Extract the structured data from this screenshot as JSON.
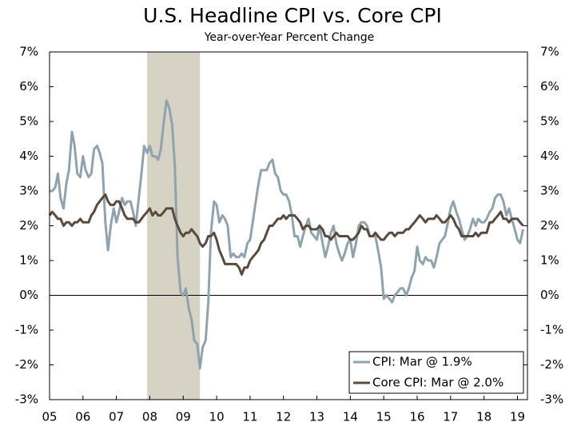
{
  "chart_data": {
    "type": "line",
    "title": "U.S. Headline CPI vs. Core CPI",
    "subtitle": "Year-over-Year Percent Change",
    "x": [
      2005,
      2005.08,
      2005.17,
      2005.25,
      2005.33,
      2005.42,
      2005.5,
      2005.58,
      2005.67,
      2005.75,
      2005.83,
      2005.92,
      2006,
      2006.08,
      2006.17,
      2006.25,
      2006.33,
      2006.42,
      2006.5,
      2006.58,
      2006.67,
      2006.75,
      2006.83,
      2006.92,
      2007,
      2007.08,
      2007.17,
      2007.25,
      2007.33,
      2007.42,
      2007.5,
      2007.58,
      2007.67,
      2007.75,
      2007.83,
      2007.92,
      2008,
      2008.08,
      2008.17,
      2008.25,
      2008.33,
      2008.42,
      2008.5,
      2008.58,
      2008.67,
      2008.75,
      2008.83,
      2008.92,
      2009,
      2009.08,
      2009.17,
      2009.25,
      2009.33,
      2009.42,
      2009.5,
      2009.58,
      2009.67,
      2009.75,
      2009.83,
      2009.92,
      2010,
      2010.08,
      2010.17,
      2010.25,
      2010.33,
      2010.42,
      2010.5,
      2010.58,
      2010.67,
      2010.75,
      2010.83,
      2010.92,
      2011,
      2011.08,
      2011.17,
      2011.25,
      2011.33,
      2011.42,
      2011.5,
      2011.58,
      2011.67,
      2011.75,
      2011.83,
      2011.92,
      2012,
      2012.08,
      2012.17,
      2012.25,
      2012.33,
      2012.42,
      2012.5,
      2012.58,
      2012.67,
      2012.75,
      2012.83,
      2012.92,
      2013,
      2013.08,
      2013.17,
      2013.25,
      2013.33,
      2013.42,
      2013.5,
      2013.58,
      2013.67,
      2013.75,
      2013.83,
      2013.92,
      2014,
      2014.08,
      2014.17,
      2014.25,
      2014.33,
      2014.42,
      2014.5,
      2014.58,
      2014.67,
      2014.75,
      2014.83,
      2014.92,
      2015,
      2015.08,
      2015.17,
      2015.25,
      2015.33,
      2015.42,
      2015.5,
      2015.58,
      2015.67,
      2015.75,
      2015.83,
      2015.92,
      2016,
      2016.08,
      2016.17,
      2016.25,
      2016.33,
      2016.42,
      2016.5,
      2016.58,
      2016.67,
      2016.75,
      2016.83,
      2016.92,
      2017,
      2017.08,
      2017.17,
      2017.25,
      2017.33,
      2017.42,
      2017.5,
      2017.58,
      2017.67,
      2017.75,
      2017.83,
      2017.92,
      2018,
      2018.08,
      2018.17,
      2018.25,
      2018.33,
      2018.42,
      2018.5,
      2018.58,
      2018.67,
      2018.75,
      2018.83,
      2018.92,
      2019,
      2019.08,
      2019.17
    ],
    "series": [
      {
        "name": "CPI: Mar @ 1.9%",
        "color": "#8fa3ae",
        "values": [
          3.0,
          3.0,
          3.1,
          3.5,
          2.8,
          2.5,
          3.2,
          3.6,
          4.7,
          4.3,
          3.5,
          3.4,
          4.0,
          3.6,
          3.4,
          3.5,
          4.2,
          4.3,
          4.1,
          3.8,
          2.1,
          1.3,
          2.0,
          2.5,
          2.1,
          2.4,
          2.8,
          2.6,
          2.7,
          2.7,
          2.4,
          2.0,
          2.8,
          3.5,
          4.3,
          4.1,
          4.3,
          4.0,
          4.0,
          3.9,
          4.2,
          5.0,
          5.6,
          5.4,
          4.9,
          3.7,
          1.1,
          0.1,
          0.0,
          0.2,
          -0.4,
          -0.7,
          -1.3,
          -1.4,
          -2.1,
          -1.5,
          -1.3,
          -0.2,
          1.8,
          2.7,
          2.6,
          2.1,
          2.3,
          2.2,
          2.0,
          1.1,
          1.2,
          1.1,
          1.1,
          1.2,
          1.1,
          1.5,
          1.6,
          2.1,
          2.7,
          3.2,
          3.6,
          3.6,
          3.6,
          3.8,
          3.9,
          3.5,
          3.4,
          3.0,
          2.9,
          2.9,
          2.7,
          2.3,
          1.7,
          1.7,
          1.4,
          1.7,
          2.0,
          2.2,
          1.8,
          1.7,
          1.6,
          2.0,
          1.5,
          1.1,
          1.4,
          1.8,
          2.0,
          1.5,
          1.2,
          1.0,
          1.2,
          1.5,
          1.6,
          1.1,
          1.5,
          2.0,
          2.1,
          2.1,
          2.0,
          1.7,
          1.7,
          1.7,
          1.3,
          0.8,
          -0.1,
          0.0,
          -0.1,
          -0.2,
          0.0,
          0.1,
          0.2,
          0.2,
          0.0,
          0.2,
          0.5,
          0.7,
          1.4,
          1.0,
          0.9,
          1.1,
          1.0,
          1.0,
          0.8,
          1.1,
          1.5,
          1.6,
          1.7,
          2.1,
          2.5,
          2.7,
          2.4,
          2.2,
          1.9,
          1.6,
          1.7,
          1.9,
          2.2,
          2.0,
          2.2,
          2.1,
          2.1,
          2.2,
          2.4,
          2.5,
          2.8,
          2.9,
          2.9,
          2.7,
          2.3,
          2.5,
          2.2,
          1.9,
          1.6,
          1.5,
          1.9
        ]
      },
      {
        "name": "Core CPI: Mar @ 2.0%",
        "color": "#594a3c",
        "values": [
          2.3,
          2.4,
          2.3,
          2.2,
          2.2,
          2.0,
          2.1,
          2.1,
          2.0,
          2.1,
          2.1,
          2.2,
          2.1,
          2.1,
          2.1,
          2.3,
          2.4,
          2.6,
          2.7,
          2.8,
          2.9,
          2.7,
          2.6,
          2.6,
          2.7,
          2.7,
          2.5,
          2.3,
          2.2,
          2.2,
          2.2,
          2.1,
          2.1,
          2.2,
          2.3,
          2.4,
          2.5,
          2.3,
          2.4,
          2.3,
          2.3,
          2.4,
          2.5,
          2.5,
          2.5,
          2.2,
          2.0,
          1.8,
          1.7,
          1.8,
          1.8,
          1.9,
          1.8,
          1.7,
          1.5,
          1.4,
          1.5,
          1.7,
          1.7,
          1.8,
          1.6,
          1.3,
          1.1,
          0.9,
          0.9,
          0.9,
          0.9,
          0.9,
          0.8,
          0.6,
          0.8,
          0.8,
          1.0,
          1.1,
          1.2,
          1.3,
          1.5,
          1.6,
          1.8,
          2.0,
          2.0,
          2.1,
          2.2,
          2.2,
          2.3,
          2.2,
          2.3,
          2.3,
          2.3,
          2.2,
          2.1,
          1.9,
          2.0,
          2.0,
          1.9,
          1.9,
          1.9,
          2.0,
          1.9,
          1.7,
          1.7,
          1.6,
          1.7,
          1.8,
          1.7,
          1.7,
          1.7,
          1.7,
          1.6,
          1.6,
          1.7,
          1.8,
          2.0,
          1.9,
          1.9,
          1.7,
          1.7,
          1.8,
          1.7,
          1.6,
          1.6,
          1.7,
          1.8,
          1.8,
          1.7,
          1.8,
          1.8,
          1.8,
          1.9,
          1.9,
          2.0,
          2.1,
          2.2,
          2.3,
          2.2,
          2.1,
          2.2,
          2.2,
          2.2,
          2.3,
          2.2,
          2.1,
          2.1,
          2.2,
          2.3,
          2.2,
          2.0,
          1.9,
          1.7,
          1.7,
          1.7,
          1.7,
          1.7,
          1.8,
          1.7,
          1.8,
          1.8,
          1.8,
          2.1,
          2.1,
          2.2,
          2.3,
          2.4,
          2.2,
          2.2,
          2.1,
          2.2,
          2.2,
          2.2,
          2.1,
          2.0
        ]
      }
    ],
    "xlim": [
      2005,
      2019.3
    ],
    "xticks": [
      {
        "value": 2005,
        "label": "05"
      },
      {
        "value": 2006,
        "label": "06"
      },
      {
        "value": 2007,
        "label": "07"
      },
      {
        "value": 2008,
        "label": "08"
      },
      {
        "value": 2009,
        "label": "09"
      },
      {
        "value": 2010,
        "label": "10"
      },
      {
        "value": 2011,
        "label": "11"
      },
      {
        "value": 2012,
        "label": "12"
      },
      {
        "value": 2013,
        "label": "13"
      },
      {
        "value": 2014,
        "label": "14"
      },
      {
        "value": 2015,
        "label": "15"
      },
      {
        "value": 2016,
        "label": "16"
      },
      {
        "value": 2017,
        "label": "17"
      },
      {
        "value": 2018,
        "label": "18"
      },
      {
        "value": 2019,
        "label": "19"
      }
    ],
    "ylim": [
      -3,
      7
    ],
    "yticks": [
      {
        "value": -3,
        "label": "-3%"
      },
      {
        "value": -2,
        "label": "-2%"
      },
      {
        "value": -1,
        "label": "-1%"
      },
      {
        "value": 0,
        "label": "0%"
      },
      {
        "value": 1,
        "label": "1%"
      },
      {
        "value": 2,
        "label": "2%"
      },
      {
        "value": 3,
        "label": "3%"
      },
      {
        "value": 4,
        "label": "4%"
      },
      {
        "value": 5,
        "label": "5%"
      },
      {
        "value": 6,
        "label": "6%"
      },
      {
        "value": 7,
        "label": "7%"
      }
    ],
    "y2lim": [
      -3,
      7
    ],
    "y2ticks": [
      {
        "value": -3,
        "label": "-3%"
      },
      {
        "value": -2,
        "label": "-2%"
      },
      {
        "value": -1,
        "label": "-1%"
      },
      {
        "value": 0,
        "label": "0%"
      },
      {
        "value": 1,
        "label": "1%"
      },
      {
        "value": 2,
        "label": "2%"
      },
      {
        "value": 3,
        "label": "3%"
      },
      {
        "value": 4,
        "label": "4%"
      },
      {
        "value": 5,
        "label": "5%"
      },
      {
        "value": 6,
        "label": "6%"
      },
      {
        "value": 7,
        "label": "7%"
      }
    ],
    "shaded_span": [
      2007.92,
      2009.5
    ],
    "shaded_color": "#d6d2c4",
    "legend": "lower right",
    "grid": false
  }
}
